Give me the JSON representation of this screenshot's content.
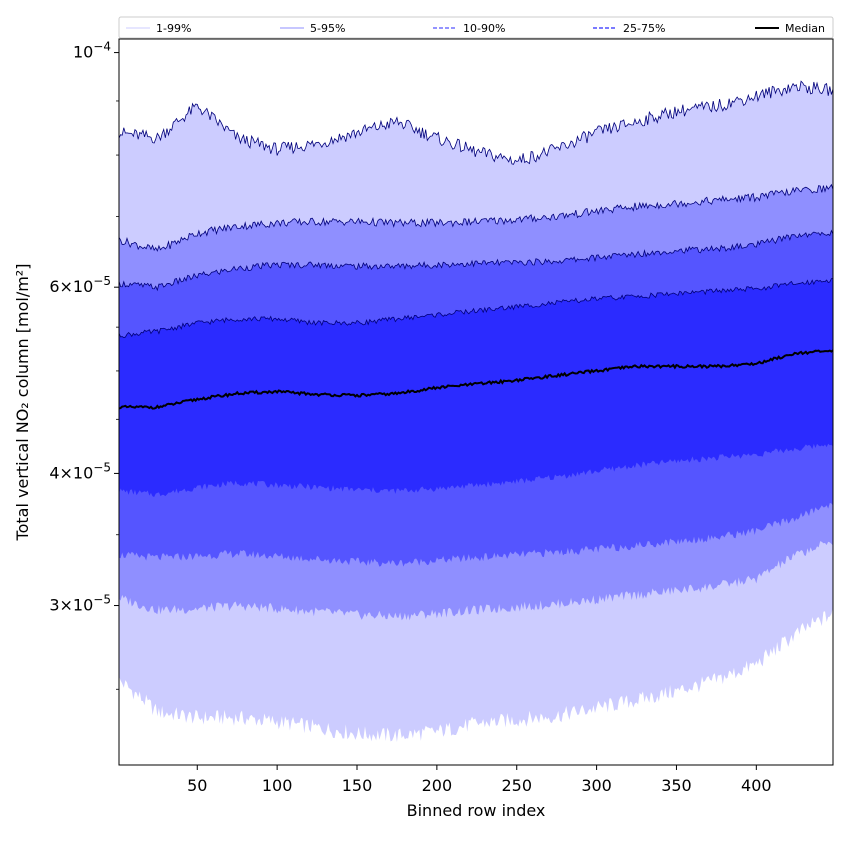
{
  "chart_data": {
    "type": "area",
    "title": "",
    "xlabel": "Binned row index",
    "ylabel": "Total vertical NO₂ column [mol/m²]",
    "yscale": "log",
    "xlim": [
      1,
      448
    ],
    "ylim": [
      2.12e-05,
      0.000103
    ],
    "x_ticks": [
      50,
      100,
      150,
      200,
      250,
      300,
      350,
      400
    ],
    "y_ticks": [
      {
        "value": 0.0001,
        "mantissa": "",
        "exponent": "−4"
      },
      {
        "value": 6e-05,
        "mantissa": "6",
        "exponent": "−5"
      },
      {
        "value": 4e-05,
        "mantissa": "4",
        "exponent": "−5"
      },
      {
        "value": 3e-05,
        "mantissa": "3",
        "exponent": "−5"
      }
    ],
    "x": [
      1,
      25,
      50,
      75,
      100,
      125,
      150,
      175,
      200,
      225,
      250,
      275,
      300,
      325,
      350,
      375,
      400,
      425,
      448
    ],
    "bands": [
      {
        "name": "1-99%",
        "color": "#ccccff",
        "lower": [
          2.55e-05,
          2.38e-05,
          2.35e-05,
          2.35e-05,
          2.33e-05,
          2.3e-05,
          2.27e-05,
          2.26e-05,
          2.28e-05,
          2.32e-05,
          2.34e-05,
          2.36e-05,
          2.4e-05,
          2.44e-05,
          2.49e-05,
          2.55e-05,
          2.64e-05,
          2.82e-05,
          2.95e-05
        ],
        "upper": [
          8.4e-05,
          8.3e-05,
          8.9e-05,
          8.3e-05,
          8.1e-05,
          8.2e-05,
          8.4e-05,
          8.6e-05,
          8.3e-05,
          8.05e-05,
          7.9e-05,
          8.1e-05,
          8.4e-05,
          8.6e-05,
          8.8e-05,
          8.9e-05,
          9.1e-05,
          9.3e-05,
          9.2e-05
        ]
      },
      {
        "name": "5-95%",
        "color": "#8f8fff",
        "lower": [
          3.05e-05,
          2.97e-05,
          2.98e-05,
          3e-05,
          2.98e-05,
          2.96e-05,
          2.94e-05,
          2.93e-05,
          2.95e-05,
          2.97e-05,
          2.99e-05,
          3.01e-05,
          3.04e-05,
          3.07e-05,
          3.1e-05,
          3.13e-05,
          3.18e-05,
          3.35e-05,
          3.45e-05
        ],
        "upper": [
          6.65e-05,
          6.5e-05,
          6.75e-05,
          6.85e-05,
          6.9e-05,
          6.92e-05,
          6.92e-05,
          6.9e-05,
          6.9e-05,
          6.92e-05,
          6.95e-05,
          7e-05,
          7.08e-05,
          7.15e-05,
          7.2e-05,
          7.25e-05,
          7.3e-05,
          7.4e-05,
          7.45e-05
        ]
      },
      {
        "name": "10-90%",
        "color": "#5555ff",
        "lower": [
          3.35e-05,
          3.33e-05,
          3.34e-05,
          3.36e-05,
          3.34e-05,
          3.32e-05,
          3.3e-05,
          3.29e-05,
          3.31e-05,
          3.33e-05,
          3.35e-05,
          3.37e-05,
          3.39e-05,
          3.42e-05,
          3.45e-05,
          3.48e-05,
          3.53e-05,
          3.63e-05,
          3.75e-05
        ],
        "upper": [
          6.05e-05,
          6e-05,
          6.15e-05,
          6.25e-05,
          6.3e-05,
          6.3e-05,
          6.28e-05,
          6.28e-05,
          6.3e-05,
          6.32e-05,
          6.33e-05,
          6.35e-05,
          6.4e-05,
          6.45e-05,
          6.5e-05,
          6.52e-05,
          6.58e-05,
          6.72e-05,
          6.75e-05
        ]
      },
      {
        "name": "25-75%",
        "color": "#2b2bff",
        "lower": [
          3.85e-05,
          3.82e-05,
          3.88e-05,
          3.92e-05,
          3.9e-05,
          3.88e-05,
          3.86e-05,
          3.85e-05,
          3.87e-05,
          3.9e-05,
          3.93e-05,
          3.97e-05,
          4.02e-05,
          4.07e-05,
          4.11e-05,
          4.14e-05,
          4.17e-05,
          4.22e-05,
          4.27e-05
        ],
        "upper": [
          5.4e-05,
          5.45e-05,
          5.55e-05,
          5.6e-05,
          5.6e-05,
          5.55e-05,
          5.55e-05,
          5.6e-05,
          5.65e-05,
          5.7e-05,
          5.75e-05,
          5.8e-05,
          5.85e-05,
          5.88e-05,
          5.92e-05,
          5.95e-05,
          5.98e-05,
          6.05e-05,
          6.1e-05
        ]
      }
    ],
    "median": {
      "name": "Median",
      "color": "#000000",
      "values": [
        4.62e-05,
        4.62e-05,
        4.7e-05,
        4.76e-05,
        4.78e-05,
        4.75e-05,
        4.74e-05,
        4.76e-05,
        4.82e-05,
        4.86e-05,
        4.9e-05,
        4.95e-05,
        5e-05,
        5.05e-05,
        5.05e-05,
        5.05e-05,
        5.08e-05,
        5.2e-05,
        5.22e-05
      ]
    },
    "legend": {
      "placement": "top",
      "entries": [
        {
          "label": "1-99%",
          "color": "#ccccff",
          "style": "solid-thin"
        },
        {
          "label": "5-95%",
          "color": "#8f8fff",
          "style": "solid-thin"
        },
        {
          "label": "10-90%",
          "color": "#5555ff",
          "style": "dashed"
        },
        {
          "label": "25-75%",
          "color": "#2b2bff",
          "style": "dashed"
        },
        {
          "label": "Median",
          "color": "#000000",
          "style": "solid-thick"
        }
      ]
    }
  }
}
